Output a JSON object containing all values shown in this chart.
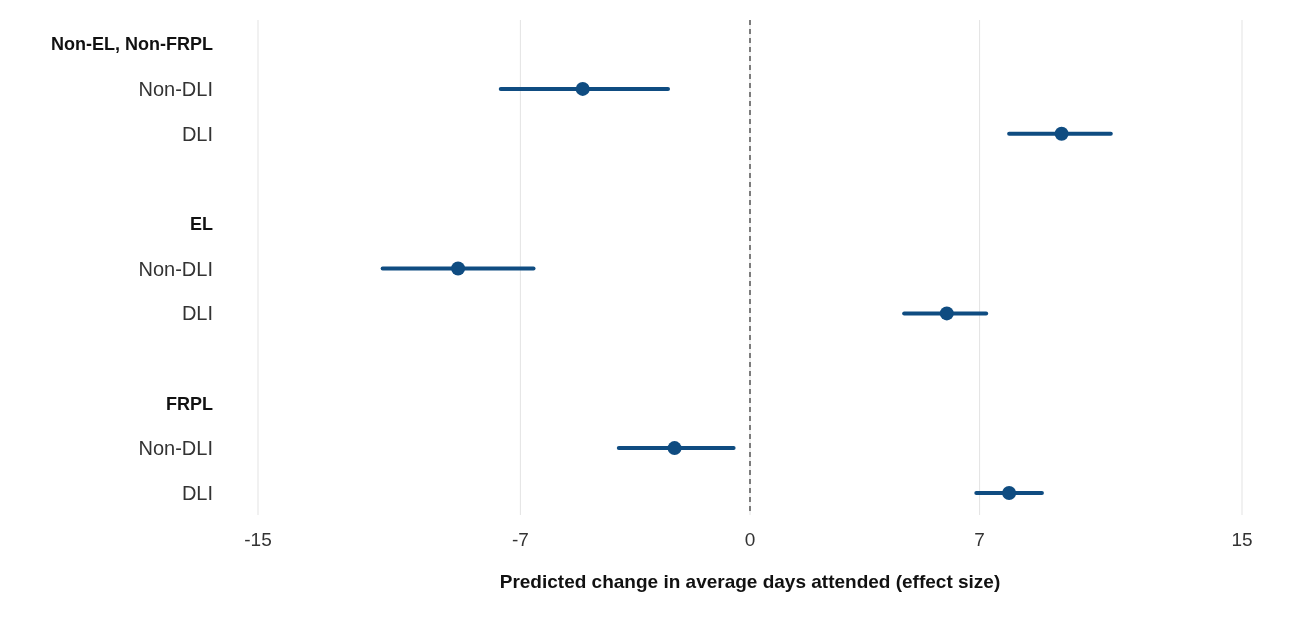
{
  "chart_data": {
    "type": "scatter",
    "orientation": "horizontal",
    "xlabel": "Predicted change in average days attended (effect size)",
    "categories": [
      "Non-EL, Non-FRPL",
      "Non-DLI",
      "DLI",
      null,
      "EL",
      "Non-DLI",
      "DLI",
      null,
      "FRPL",
      "Non-DLI",
      "DLI"
    ],
    "values": [
      null,
      -5.1,
      9.5,
      null,
      null,
      -8.9,
      6.0,
      null,
      null,
      -2.3,
      7.9
    ],
    "errors": [
      null,
      [
        -7.6,
        -2.5
      ],
      [
        7.9,
        11.0
      ],
      null,
      null,
      [
        -11.2,
        -6.6
      ],
      [
        4.7,
        7.2
      ],
      null,
      null,
      [
        -4.0,
        -0.5
      ],
      [
        6.9,
        8.9
      ]
    ],
    "color": "#0f4c81",
    "marker": "circle",
    "xlim": [
      -15,
      15
    ],
    "xticks": [
      -15,
      -7,
      0,
      7,
      15
    ],
    "grid": "x",
    "ref_lines": [
      {
        "axis": "x",
        "value": 0,
        "line_style": "dashed",
        "color": "#555555"
      }
    ]
  }
}
